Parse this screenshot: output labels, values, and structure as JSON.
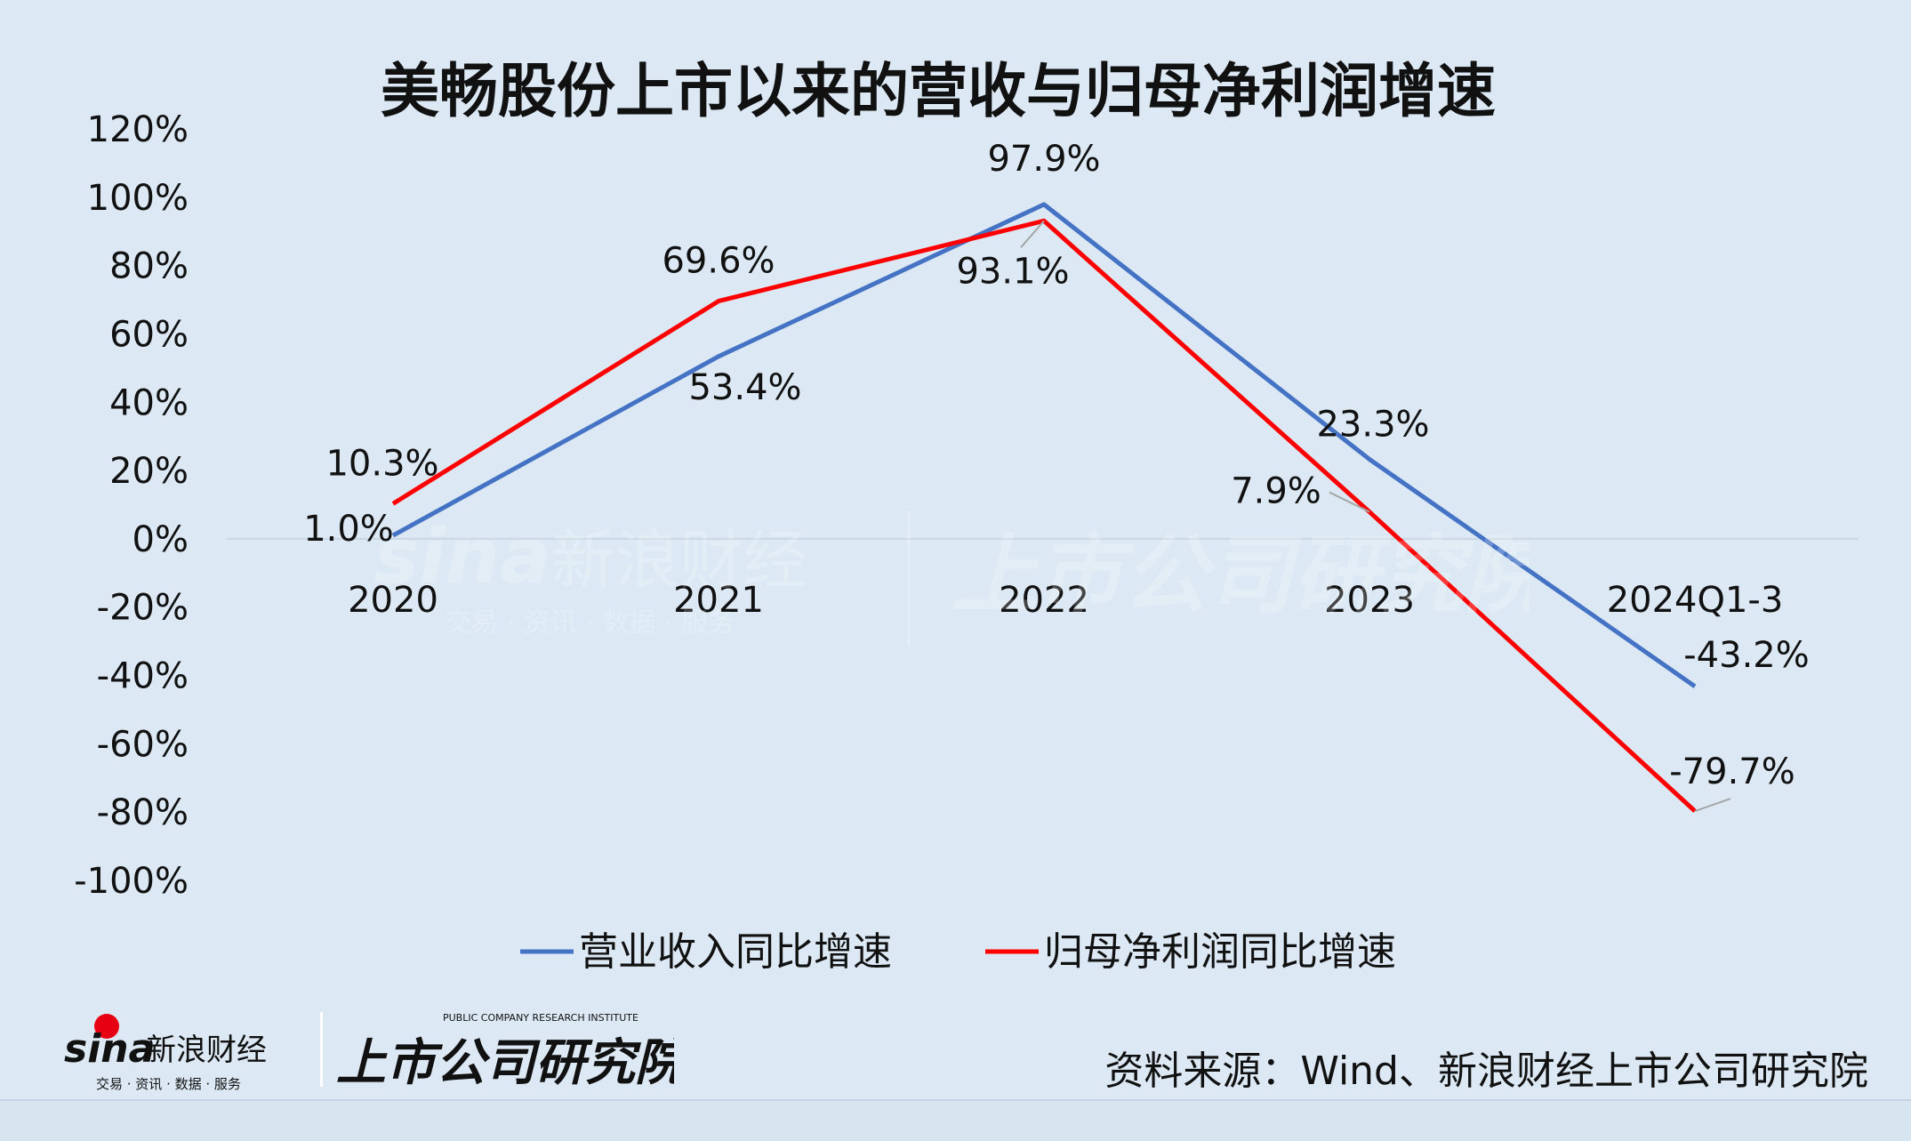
{
  "chart_data": {
    "type": "line",
    "title": "美畅股份上市以来的营收与归母净利润增速",
    "categories": [
      "2020",
      "2021",
      "2022",
      "2023",
      "2024Q1-3"
    ],
    "series": [
      {
        "name": "营业收入同比增速",
        "color": "#4472c4",
        "values": [
          1.0,
          53.4,
          97.9,
          23.3,
          -43.2
        ],
        "labels": [
          "1.0%",
          "53.4%",
          "97.9%",
          "23.3%",
          "-43.2%"
        ]
      },
      {
        "name": "归母净利润同比增速",
        "color": "#ff0000",
        "values": [
          10.3,
          69.6,
          93.1,
          7.9,
          -79.7
        ],
        "labels": [
          "10.3%",
          "69.6%",
          "93.1%",
          "7.9%",
          "-79.7%"
        ]
      }
    ],
    "ylim": [
      -100,
      120
    ],
    "yticks": [
      "120%",
      "100%",
      "80%",
      "60%",
      "40%",
      "20%",
      "0%",
      "-20%",
      "-40%",
      "-60%",
      "-80%",
      "-100%"
    ],
    "legend_position": "bottom",
    "grid": false
  },
  "source": "资料来源：Wind、新浪财经上市公司研究院",
  "brand": {
    "sina_logo_text": "sina",
    "sina_name": "新浪财经",
    "sina_tagline": "交易 · 资讯 · 数据 · 服务",
    "institute_name": "上市公司研究院",
    "institute_en": "PUBLIC COMPANY RESEARCH INSTITUTE"
  },
  "colors": {
    "background": "#dce9f4",
    "revenue": "#4472c4",
    "profit": "#ff0000"
  }
}
